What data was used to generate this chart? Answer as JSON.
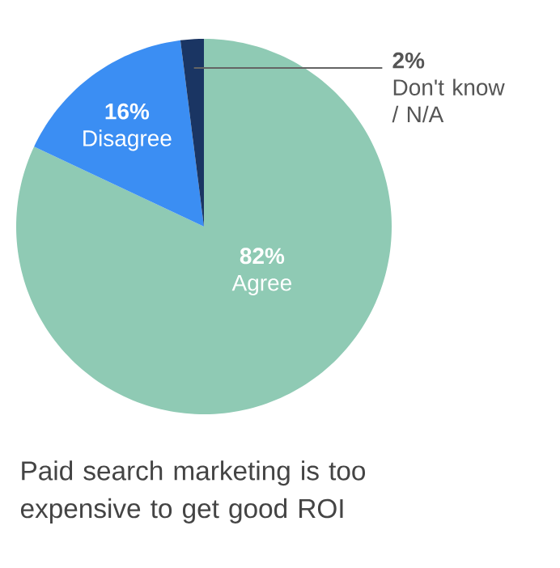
{
  "chart_data": {
    "type": "pie",
    "title": "Paid search marketing is too expensive to get good ROI",
    "categories": [
      "Agree",
      "Disagree",
      "Don't know / N/A"
    ],
    "values": [
      82,
      16,
      2
    ],
    "value_labels": [
      "82%",
      "16%",
      "2%"
    ],
    "colors": [
      "#8fcab4",
      "#3b8ef3",
      "#1a3563"
    ]
  }
}
